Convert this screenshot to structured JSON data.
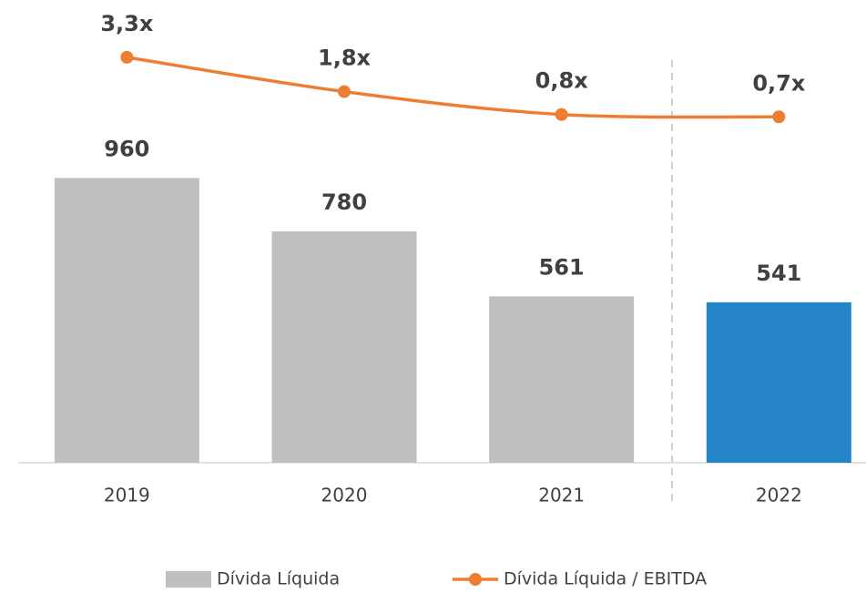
{
  "chart_data": {
    "type": "bar",
    "categories": [
      "2019",
      "2020",
      "2021",
      "2022"
    ],
    "series": [
      {
        "name": "Dívida Líquida",
        "type": "bar",
        "color": "#bfbfbf",
        "colors": [
          "#bfbfbf",
          "#bfbfbf",
          "#bfbfbf",
          "#2585c8"
        ],
        "values": [
          960,
          780,
          561,
          541
        ]
      },
      {
        "name": "Dívida Líquida / EBITDA",
        "type": "line",
        "axis": "y2",
        "color": "#ed7d31",
        "values": [
          3.3,
          1.8,
          0.8,
          0.7
        ],
        "value_labels": [
          "3,3x",
          "1,8x",
          "0,8x",
          "0,7x"
        ]
      }
    ],
    "ylim": [
      0,
      1560
    ],
    "y2lim": [
      -14.4,
      5.8
    ],
    "legend": "bottom"
  }
}
